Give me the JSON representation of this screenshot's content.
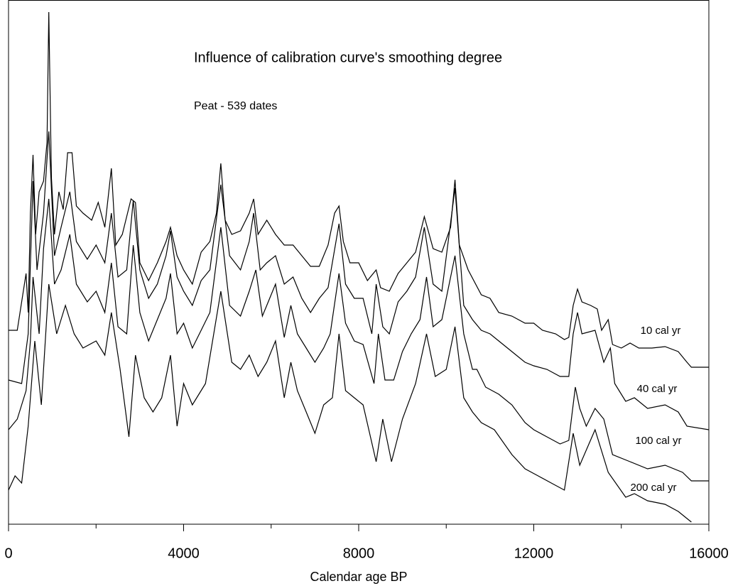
{
  "chart_data": {
    "type": "line",
    "title": "Influence of calibration curve's smoothing degree",
    "subtitle": "Peat - 539 dates",
    "x_label": "Calendar age BP",
    "xlim": [
      0,
      16000
    ],
    "xticks": [
      0,
      4000,
      8000,
      12000,
      16000
    ],
    "xminorticks": [
      2000,
      6000,
      10000,
      14000
    ],
    "ylim": [
      0,
      738
    ],
    "series": [
      {
        "name": "10 cal yr",
        "color": "#000000",
        "x": [
          0,
          200,
          400,
          450,
          500,
          560,
          620,
          700,
          800,
          880,
          920,
          980,
          1050,
          1150,
          1250,
          1350,
          1450,
          1550,
          1700,
          1900,
          2050,
          2200,
          2350,
          2450,
          2600,
          2800,
          2900,
          3000,
          3200,
          3400,
          3600,
          3700,
          3850,
          4000,
          4200,
          4400,
          4600,
          4750,
          4850,
          4950,
          5100,
          5300,
          5500,
          5600,
          5700,
          5900,
          6100,
          6300,
          6500,
          6700,
          6900,
          7100,
          7300,
          7450,
          7550,
          7650,
          7800,
          8000,
          8200,
          8400,
          8500,
          8700,
          8900,
          9100,
          9300,
          9500,
          9700,
          9900,
          10100,
          10200,
          10300,
          10500,
          10800,
          11000,
          11200,
          11500,
          11800,
          12000,
          12200,
          12500,
          12700,
          12800,
          12900,
          13000,
          13100,
          13300,
          13450,
          13550,
          13700,
          13800,
          14000,
          14200,
          14400,
          14700,
          15000,
          15300,
          15500,
          15600,
          16000
        ],
        "values": [
          273,
          273,
          353,
          298,
          438,
          520,
          408,
          468,
          483,
          538,
          721,
          488,
          408,
          468,
          443,
          523,
          523,
          448,
          438,
          428,
          453,
          418,
          501,
          393,
          408,
          458,
          453,
          368,
          343,
          368,
          398,
          418,
          378,
          358,
          338,
          383,
          398,
          438,
          508,
          428,
          408,
          413,
          438,
          458,
          408,
          428,
          408,
          393,
          393,
          378,
          363,
          363,
          393,
          438,
          448,
          398,
          368,
          368,
          343,
          358,
          333,
          328,
          353,
          368,
          383,
          433,
          388,
          383,
          418,
          485,
          393,
          358,
          323,
          318,
          298,
          293,
          283,
          283,
          273,
          268,
          260,
          263,
          308,
          331,
          313,
          308,
          303,
          273,
          288,
          253,
          248,
          255,
          248,
          248,
          250,
          243,
          228,
          221,
          221
        ]
      },
      {
        "name": "40 cal yr",
        "color": "#000000",
        "x": [
          0,
          300,
          450,
          560,
          650,
          800,
          920,
          1050,
          1200,
          1400,
          1550,
          1800,
          2000,
          2200,
          2350,
          2500,
          2700,
          2850,
          3000,
          3200,
          3400,
          3600,
          3700,
          3850,
          4000,
          4200,
          4400,
          4600,
          4850,
          5050,
          5300,
          5500,
          5600,
          5750,
          5900,
          6100,
          6300,
          6500,
          6700,
          6900,
          7100,
          7300,
          7550,
          7700,
          7900,
          8100,
          8300,
          8400,
          8550,
          8700,
          8900,
          9100,
          9300,
          9500,
          9700,
          9900,
          10200,
          10400,
          10600,
          10800,
          11000,
          11200,
          11500,
          11800,
          12000,
          12300,
          12600,
          12800,
          12900,
          13000,
          13100,
          13400,
          13600,
          13750,
          13850,
          14100,
          14300,
          14600,
          15000,
          15300,
          15500,
          16000
        ],
        "values": [
          203,
          198,
          268,
          483,
          358,
          438,
          553,
          378,
          418,
          468,
          398,
          373,
          393,
          368,
          438,
          348,
          358,
          456,
          358,
          318,
          338,
          378,
          413,
          348,
          328,
          308,
          343,
          358,
          478,
          378,
          358,
          398,
          438,
          358,
          368,
          378,
          338,
          348,
          318,
          298,
          318,
          333,
          423,
          338,
          318,
          318,
          268,
          338,
          278,
          268,
          313,
          328,
          348,
          418,
          338,
          328,
          473,
          308,
          288,
          273,
          268,
          258,
          243,
          228,
          223,
          218,
          208,
          208,
          268,
          298,
          268,
          273,
          228,
          248,
          198,
          173,
          178,
          163,
          168,
          158,
          138,
          133
        ]
      },
      {
        "name": "100 cal yr",
        "color": "#000000",
        "x": [
          0,
          200,
          400,
          500,
          560,
          700,
          800,
          920,
          1050,
          1200,
          1400,
          1550,
          1800,
          2000,
          2200,
          2350,
          2500,
          2700,
          2850,
          3000,
          3200,
          3400,
          3600,
          3700,
          3850,
          4000,
          4200,
          4400,
          4600,
          4850,
          5050,
          5300,
          5500,
          5650,
          5800,
          5900,
          6100,
          6300,
          6450,
          6600,
          6800,
          7000,
          7200,
          7350,
          7550,
          7700,
          7900,
          8100,
          8350,
          8450,
          8600,
          8800,
          9000,
          9200,
          9400,
          9550,
          9700,
          9900,
          10200,
          10400,
          10600,
          10700,
          10900,
          11200,
          11500,
          11800,
          12000,
          12300,
          12600,
          12800,
          12950,
          13050,
          13200,
          13400,
          13600,
          13800,
          14200,
          14600,
          15000,
          15400,
          15600,
          16000
        ],
        "values": [
          133,
          148,
          188,
          258,
          348,
          268,
          388,
          458,
          338,
          358,
          408,
          338,
          313,
          328,
          298,
          368,
          278,
          268,
          393,
          298,
          258,
          288,
          318,
          353,
          268,
          283,
          248,
          273,
          298,
          418,
          308,
          293,
          328,
          358,
          293,
          308,
          338,
          263,
          308,
          268,
          248,
          228,
          248,
          268,
          353,
          283,
          258,
          253,
          198,
          268,
          203,
          203,
          243,
          268,
          288,
          348,
          278,
          288,
          378,
          268,
          218,
          218,
          193,
          183,
          168,
          143,
          133,
          123,
          113,
          118,
          193,
          163,
          138,
          163,
          148,
          98,
          88,
          78,
          83,
          73,
          61,
          61
        ]
      },
      {
        "name": "200 cal yr",
        "color": "#000000",
        "x": [
          0,
          150,
          300,
          450,
          600,
          750,
          920,
          1100,
          1300,
          1500,
          1700,
          2000,
          2200,
          2350,
          2550,
          2750,
          2900,
          3100,
          3300,
          3500,
          3700,
          3850,
          4000,
          4200,
          4500,
          4850,
          5100,
          5300,
          5500,
          5700,
          5900,
          6100,
          6300,
          6450,
          6600,
          6800,
          7000,
          7200,
          7400,
          7550,
          7700,
          7900,
          8100,
          8400,
          8550,
          8750,
          9000,
          9300,
          9550,
          9750,
          10000,
          10200,
          10400,
          10600,
          10800,
          11100,
          11500,
          11800,
          12100,
          12400,
          12700,
          12900,
          13050,
          13400,
          13700,
          14100,
          14300,
          14600,
          15000,
          15300,
          15600
        ],
        "values": [
          48,
          68,
          58,
          138,
          258,
          168,
          338,
          268,
          308,
          268,
          248,
          258,
          238,
          298,
          218,
          123,
          238,
          178,
          158,
          178,
          238,
          138,
          198,
          168,
          198,
          328,
          228,
          218,
          238,
          208,
          228,
          258,
          178,
          228,
          188,
          158,
          128,
          168,
          178,
          268,
          188,
          178,
          168,
          88,
          148,
          88,
          148,
          198,
          268,
          208,
          218,
          278,
          178,
          158,
          143,
          133,
          98,
          78,
          68,
          58,
          48,
          128,
          83,
          133,
          73,
          38,
          43,
          33,
          28,
          18,
          3
        ]
      }
    ]
  }
}
